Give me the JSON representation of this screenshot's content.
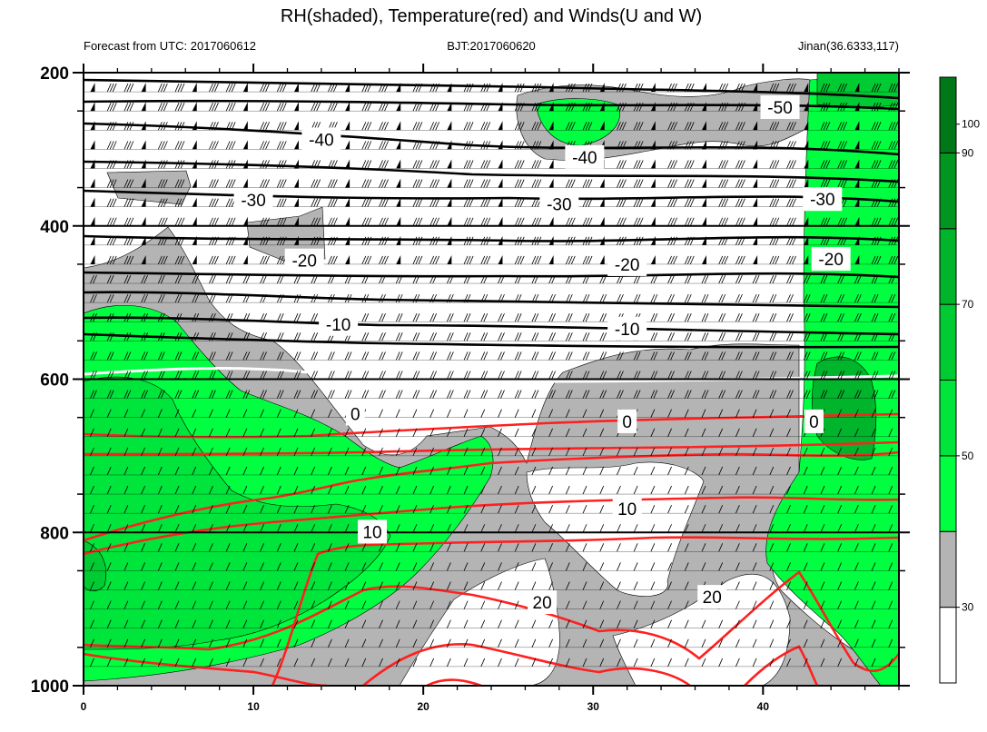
{
  "chart_data": {
    "type": "contour",
    "title": "RH(shaded), Temperature(red) and Winds(U and W)",
    "subtitle_left": "Forecast from UTC: 2017060612",
    "subtitle_center": "BJT:2017060620",
    "subtitle_right": "Jinan(36.6333,117)",
    "x_ticks": [
      "0",
      "10",
      "20",
      "30",
      "40"
    ],
    "x_range": [
      0,
      48
    ],
    "y_ticks": [
      "200",
      "400",
      "600",
      "800",
      "1000"
    ],
    "y_range": [
      200,
      1000
    ],
    "colorbar": {
      "labels": [
        "30",
        "50",
        "70",
        "90",
        "100"
      ],
      "colors": [
        "#ffffff",
        "#b4b4b4",
        "#00ff40",
        "#00e53b",
        "#00cb32",
        "#00b42b",
        "#009620",
        "#007818"
      ]
    },
    "temperature_labels": [
      {
        "label": "-50",
        "x": 41.0,
        "p": 245
      },
      {
        "label": "-40",
        "x": 14.0,
        "p": 287
      },
      {
        "label": "-40",
        "x": 29.5,
        "p": 310
      },
      {
        "label": "-30",
        "x": 10.0,
        "p": 366
      },
      {
        "label": "-30",
        "x": 28.0,
        "p": 371
      },
      {
        "label": "-30",
        "x": 43.5,
        "p": 365
      },
      {
        "label": "-20",
        "x": 13.0,
        "p": 445
      },
      {
        "label": "-20",
        "x": 32.0,
        "p": 450
      },
      {
        "label": "-20",
        "x": 44.0,
        "p": 443
      },
      {
        "label": "-10",
        "x": 15.0,
        "p": 528
      },
      {
        "label": "-10",
        "x": 32.0,
        "p": 534
      },
      {
        "label": "0",
        "x": 16.0,
        "p": 645
      },
      {
        "label": "0",
        "x": 32.0,
        "p": 655
      },
      {
        "label": "0",
        "x": 43.0,
        "p": 655
      },
      {
        "label": "10",
        "x": 17.0,
        "p": 799
      },
      {
        "label": "10",
        "x": 32.0,
        "p": 769
      },
      {
        "label": "20",
        "x": 27.0,
        "p": 891
      },
      {
        "label": "20",
        "x": 37.0,
        "p": 884
      }
    ]
  }
}
